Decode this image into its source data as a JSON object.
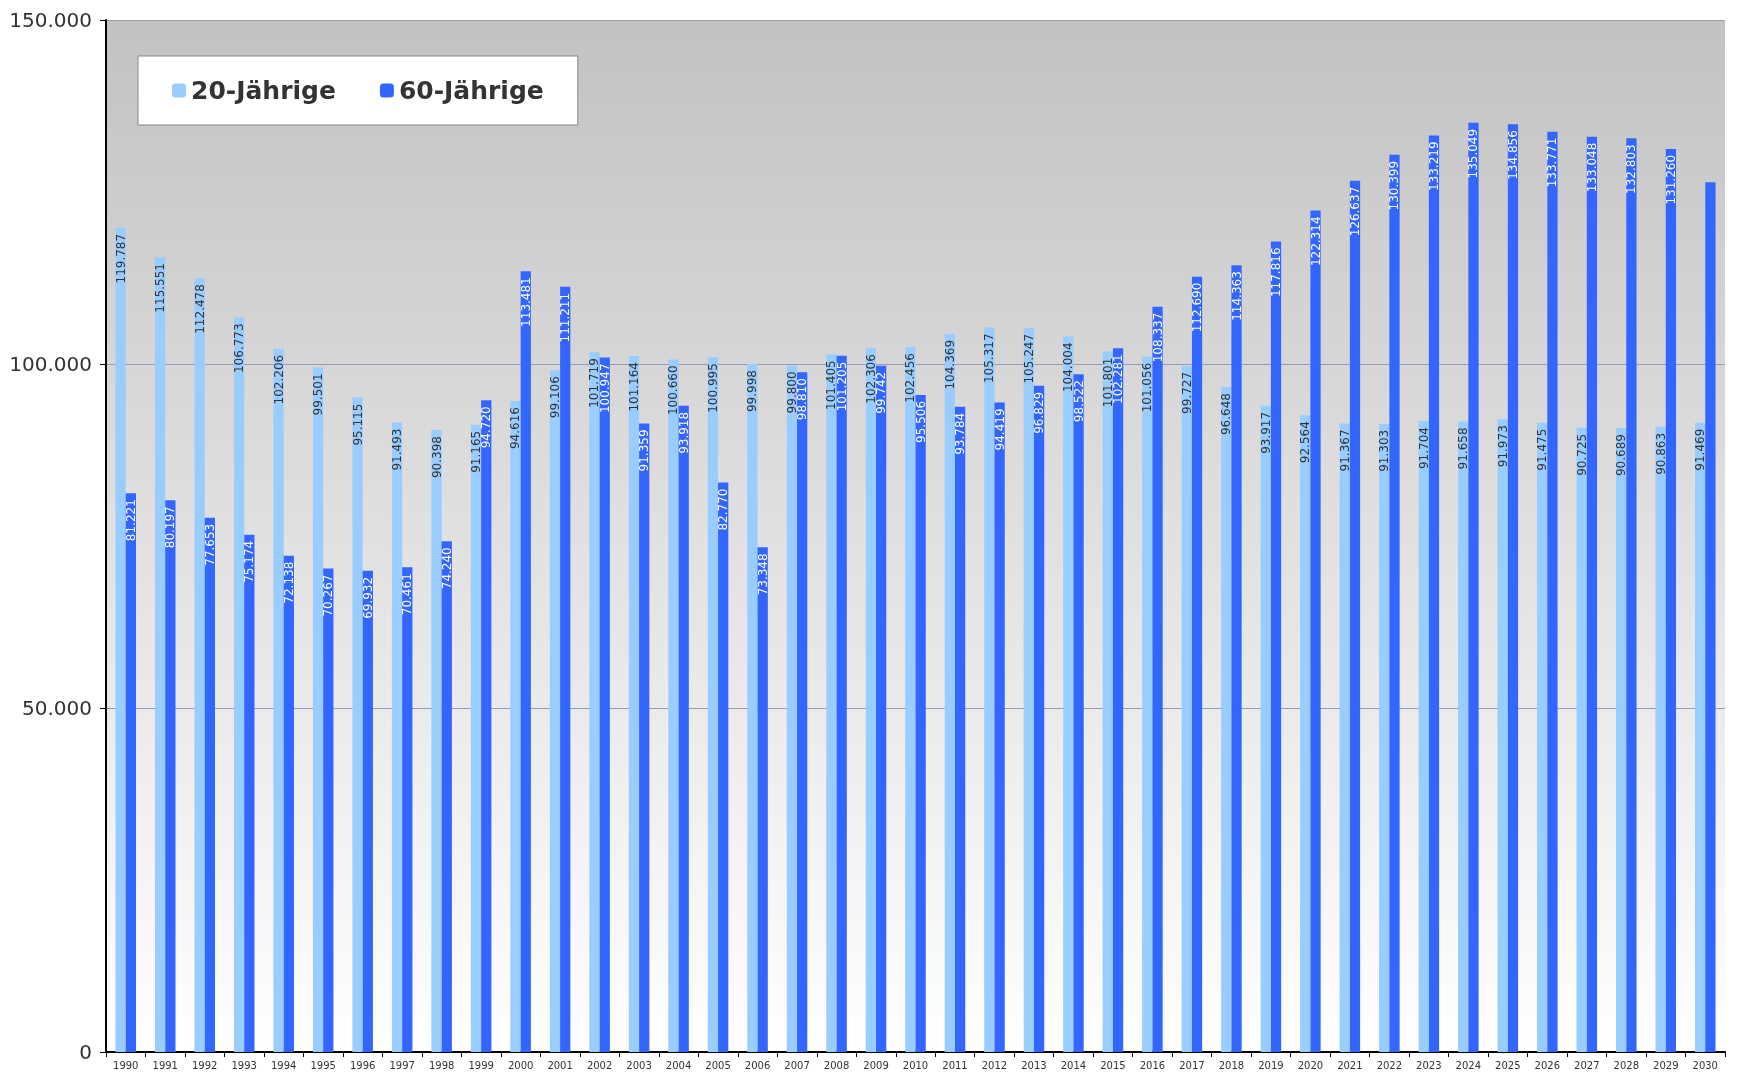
{
  "chart_data": {
    "type": "bar",
    "categories": [
      "1990",
      "1991",
      "1992",
      "1993",
      "1994",
      "1995",
      "1996",
      "1997",
      "1998",
      "1999",
      "2000",
      "2001",
      "2002",
      "2003",
      "2004",
      "2005",
      "2006",
      "2007",
      "2008",
      "2009",
      "2010",
      "2011",
      "2012",
      "2013",
      "2014",
      "2015",
      "2016",
      "2017",
      "2018",
      "2019",
      "2020",
      "2021",
      "2022",
      "2023",
      "2024",
      "2025",
      "2026",
      "2027",
      "2028",
      "2029",
      "2030"
    ],
    "series": [
      {
        "name": "20-Jährige",
        "color": "#99ccff",
        "values": [
          119787,
          115551,
          112478,
          106773,
          102206,
          99501,
          95115,
          91493,
          90398,
          91165,
          94616,
          99106,
          101719,
          101164,
          100660,
          100995,
          99998,
          99800,
          101405,
          102306,
          102456,
          104369,
          105317,
          105247,
          104004,
          101801,
          101056,
          99727,
          96648,
          93917,
          92564,
          91367,
          91303,
          91704,
          91658,
          91973,
          91475,
          90725,
          90689,
          90863,
          91469
        ],
        "value_labels": [
          "119.787",
          "115.551",
          "112.478",
          "106.773",
          "102.206",
          "99.501",
          "95.115",
          "91.493",
          "90.398",
          "91.165",
          "94.616",
          "99.106",
          "101.719",
          "101.164",
          "100.660",
          "100.995",
          "99.998",
          "99.800",
          "101.405",
          "102.306",
          "102.456",
          "104.369",
          "105.317",
          "105.247",
          "104.004",
          "101.801",
          "101.056",
          "99.727",
          "96.648",
          "93.917",
          "92.564",
          "91.367",
          "91.303",
          "91.704",
          "91.658",
          "91.973",
          "91.475",
          "90.725",
          "90.689",
          "90.863",
          "91.469"
        ]
      },
      {
        "name": "60-Jährige",
        "color": "#3366ff",
        "values": [
          81221,
          80197,
          77653,
          75174,
          72138,
          70267,
          69932,
          70461,
          74240,
          94720,
          113481,
          111211,
          100947,
          91359,
          93918,
          82770,
          73348,
          98810,
          101205,
          99742,
          95506,
          93784,
          94419,
          96829,
          98522,
          102281,
          108337,
          112690,
          114363,
          117816,
          122314,
          126637,
          130399,
          133219,
          135049,
          134856,
          133771,
          133048,
          132803,
          131260,
          126400
        ],
        "value_labels": [
          "81.221",
          "80.197",
          "77.653",
          "75.174",
          "72.138",
          "70.267",
          "69.932",
          "70.461",
          "74.240",
          "94.720",
          "113.481",
          "111.211",
          "100.947",
          "91.359",
          "93.918",
          "82.770",
          "73.348",
          "98.810",
          "101.205",
          "99.742",
          "95.506",
          "93.784",
          "94.419",
          "96.829",
          "98.522",
          "102.281",
          "108.337",
          "112.690",
          "114.363",
          "117.816",
          "122.314",
          "126.637",
          "130.399",
          "133.219",
          "135.049",
          "134.856",
          "133.771",
          "133.048",
          "132.803",
          "131.260",
          null
        ]
      }
    ],
    "ylim": [
      0,
      150000
    ],
    "yticks": [
      {
        "value": 0,
        "label": "0"
      },
      {
        "value": 50000,
        "label": "50.000"
      },
      {
        "value": 100000,
        "label": "100.000"
      },
      {
        "value": 150000,
        "label": "150.000"
      }
    ],
    "grid": "y",
    "legend": "top left"
  }
}
